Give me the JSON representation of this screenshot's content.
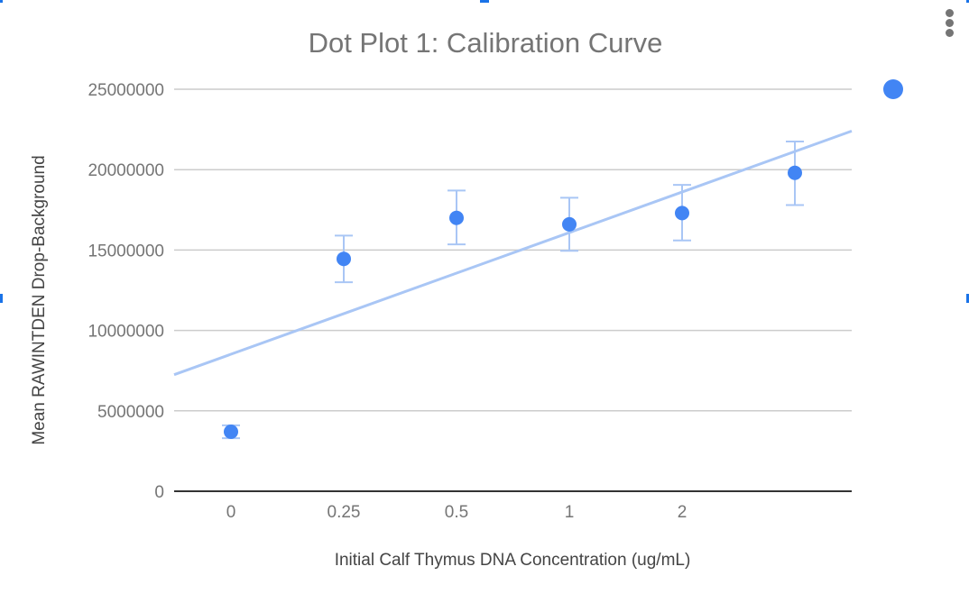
{
  "menu": {
    "icon": "more-vert-icon"
  },
  "colors": {
    "point": "#4285f4",
    "trend": "#a9c6f5",
    "error": "#a9c6f5",
    "grid": "#cccccc",
    "axis": "#333333",
    "selection": "#1a73e8"
  },
  "chart_data": {
    "type": "scatter",
    "title": "Dot Plot 1: Calibration Curve",
    "xlabel": "Initial Calf Thymus DNA Concentration (ug/mL)",
    "ylabel": "Mean RAWINTDEN Drop-Background",
    "ylim": [
      0,
      25000000
    ],
    "grid": true,
    "legend": "right",
    "y_ticks": [
      "0",
      "5000000",
      "10000000",
      "15000000",
      "20000000",
      "25000000"
    ],
    "y_tick_values": [
      0,
      5000000,
      10000000,
      15000000,
      20000000,
      25000000
    ],
    "categories": [
      "0",
      "0.25",
      "0.5",
      "1",
      "2",
      ""
    ],
    "series": [
      {
        "name": "",
        "values": [
          3700000,
          14450000,
          17000000,
          16600000,
          17300000,
          19800000
        ],
        "error_high": [
          4100000,
          15900000,
          18700000,
          18250000,
          19050000,
          21750000
        ],
        "error_low": [
          3300000,
          13000000,
          15350000,
          14950000,
          15600000,
          17800000
        ]
      }
    ],
    "trendline": {
      "type": "linear",
      "start_value": 7250000,
      "end_value": 22400000
    }
  }
}
